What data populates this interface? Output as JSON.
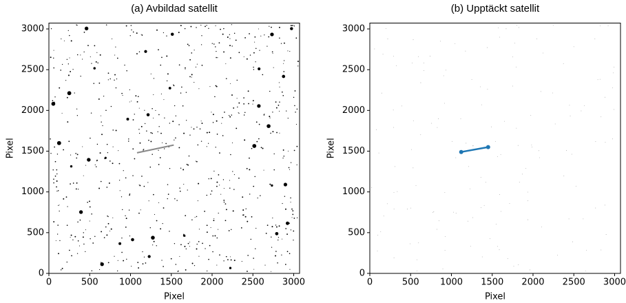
{
  "chart_data": [
    {
      "type": "image",
      "title": "(a) Avbildad satellit",
      "xlabel": "Pixel",
      "ylabel": "Pixel",
      "xlim": [
        0,
        3072
      ],
      "ylim": [
        0,
        3072
      ],
      "xticks": [
        0,
        500,
        1000,
        1500,
        2000,
        2500,
        3000
      ],
      "yticks": [
        0,
        500,
        1000,
        1500,
        2000,
        2500,
        3000
      ]
    },
    {
      "type": "line",
      "title": "(b) Upptäckt satellit",
      "xlabel": "Pixel",
      "ylabel": "Pixel",
      "xlim": [
        0,
        3072
      ],
      "ylim": [
        0,
        3072
      ],
      "xticks": [
        0,
        500,
        1000,
        1500,
        2000,
        2500,
        3000
      ],
      "yticks": [
        0,
        500,
        1000,
        1500,
        2000,
        2500,
        3000
      ],
      "x": [
        1120,
        1450
      ],
      "series": [
        {
          "color": "#1f77b4",
          "values": [
            1490,
            1550
          ]
        }
      ]
    }
  ]
}
